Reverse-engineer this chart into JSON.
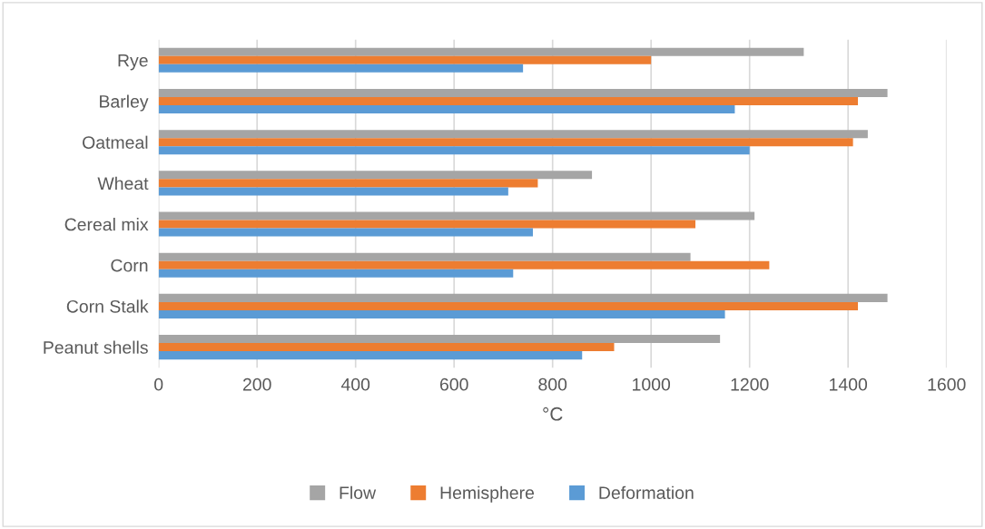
{
  "chart_data": {
    "type": "bar",
    "orientation": "horizontal",
    "xlabel": "°C",
    "categories": [
      "Rye",
      "Barley",
      "Oatmeal",
      "Wheat",
      "Cereal mix",
      "Corn",
      "Corn Stalk",
      "Peanut shells"
    ],
    "series": [
      {
        "name": "Flow",
        "color": "#a5a5a5",
        "values": [
          1310,
          1480,
          1440,
          880,
          1210,
          1080,
          1480,
          1140
        ]
      },
      {
        "name": "Hemisphere",
        "color": "#ed7d31",
        "values": [
          1000,
          1420,
          1410,
          770,
          1090,
          1240,
          1420,
          925
        ]
      },
      {
        "name": "Deformation",
        "color": "#5b9bd5",
        "values": [
          740,
          1170,
          1200,
          710,
          760,
          720,
          1150,
          860
        ]
      }
    ],
    "xlim": [
      0,
      1600
    ],
    "xticks": [
      0,
      200,
      400,
      600,
      800,
      1000,
      1200,
      1400,
      1600
    ],
    "grid": "x",
    "legend": "bottom"
  }
}
